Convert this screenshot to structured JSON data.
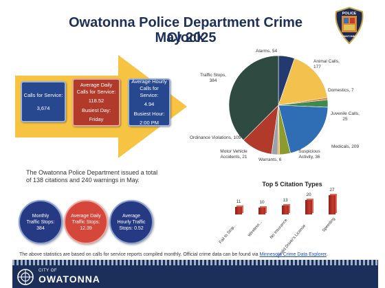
{
  "title": {
    "line1": "Owatonna Police Department Crime Clock",
    "line2": "May 2025"
  },
  "badge": {
    "top_text": "POLICE",
    "bottom_text": "OWATONNA",
    "icon": "police-badge-icon"
  },
  "stats_boxes": {
    "calls_for_service_label": "Calls for Service:",
    "calls_for_service_value": "3,674",
    "avg_daily_label": "Average Daily Calls for Service:",
    "avg_daily_value": "118.52",
    "busiest_day_label": "Busiest Day:",
    "busiest_day_value": "Friday",
    "avg_hourly_label": "Average Hourly Calls for Service:",
    "avg_hourly_value": "4.94",
    "busiest_hour_label": "Busiest Hour:",
    "busiest_hour_value": "2:00 PM"
  },
  "pie_chart": {
    "type": "pie",
    "slices": [
      {
        "label": "Alarms, 54",
        "value": 54,
        "color": "#24396e"
      },
      {
        "label": "Animal Calls, 177",
        "value": 177,
        "color": "#f2c14e"
      },
      {
        "label": "Domestics, 7",
        "value": 7,
        "color": "#e07b39"
      },
      {
        "label": "Juvenile Calls, 25",
        "value": 25,
        "color": "#3d8a4e"
      },
      {
        "label": "Medicals, 209",
        "value": 209,
        "color": "#2f6db5"
      },
      {
        "label": "Suspicious Activity, 36",
        "value": 36,
        "color": "#8c9a2e"
      },
      {
        "label": "Warrants, 6",
        "value": 6,
        "color": "#f0a63a"
      },
      {
        "label": "Motor Vehicle Accidents, 21",
        "value": 21,
        "color": "#9aa3ad"
      },
      {
        "label": "Ordinance Violations, 105",
        "value": 105,
        "color": "#b13a2a"
      },
      {
        "label": "Traffic Stops, 384",
        "value": 384,
        "color": "#2f4a40"
      }
    ]
  },
  "citations": {
    "summary": "The Owatonna Police Department issued a total of 138 citations and 240 warnings in May."
  },
  "circles": {
    "monthly_traffic": "Monthly Traffic Stops: 384",
    "avg_daily_traffic": "Average Daily Traffic Stops: 12.39",
    "avg_hourly_traffic": "Average Hourly Traffic Stops: 0.52"
  },
  "chart_data": {
    "type": "bar",
    "title": "Top 5 Citation Types",
    "categories": [
      "Fail to Stop...",
      "Wireless...",
      "No Insurance",
      "Invalid Driver's License",
      "Speeding"
    ],
    "values": [
      11,
      10,
      13,
      20,
      27
    ],
    "xlabel": "",
    "ylabel": "",
    "ylim": [
      0,
      27
    ],
    "color": "#b53026"
  },
  "footnote": {
    "text": "The above statistics are based on calls for service reports compiled monthly.  Official crime data can be found via ",
    "link": "Minnesota Crime Data Explorer",
    "end": "."
  },
  "footer": {
    "city_of": "CITY OF",
    "city_name": "OWATONNA",
    "logo_icon": "city-emblem-icon"
  }
}
